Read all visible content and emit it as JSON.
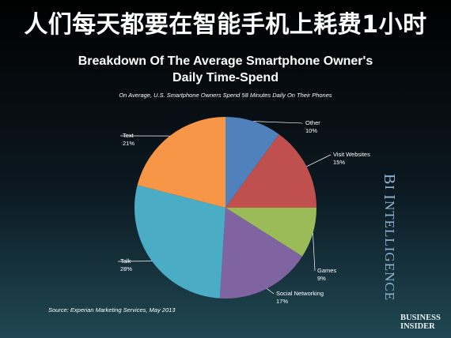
{
  "banner": {
    "text": "人们每天都要在智能手机上耗费1小时"
  },
  "chart_data": {
    "type": "pie",
    "title_line1": "Breakdown Of The Average Smartphone Owner's",
    "title_line2": "Daily Time-Spend",
    "subtitle": "On Average, U.S. Smartphone Owners Spend 58 Minutes Daily On Their Phones",
    "slices": [
      {
        "name": "Other",
        "value": 10,
        "label": "10%",
        "color": "#4f81bd"
      },
      {
        "name": "Visit Websites",
        "value": 15,
        "label": "15%",
        "color": "#c0504d"
      },
      {
        "name": "Games",
        "value": 9,
        "label": "9%",
        "color": "#9bbb59"
      },
      {
        "name": "Social Networking",
        "value": 17,
        "label": "17%",
        "color": "#8064a2"
      },
      {
        "name": "Talk",
        "value": 28,
        "label": "28%",
        "color": "#4bacc6"
      },
      {
        "name": "Text",
        "value": 21,
        "label": "21%",
        "color": "#f79646"
      }
    ],
    "start": "top",
    "direction": "clockwise"
  },
  "source": "Source: Experian Marketing Services, May 2013",
  "branding": {
    "bi_intelligence": {
      "first": "B",
      "rest1": "I ",
      "second": "I",
      "rest2": "NTELLIGENCE"
    },
    "business_insider": [
      "BUSINESS",
      "INSIDER"
    ]
  }
}
